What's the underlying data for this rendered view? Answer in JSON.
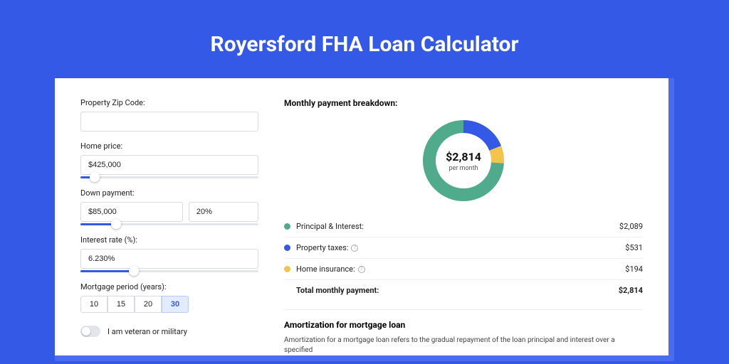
{
  "page": {
    "title": "Royersford FHA Loan Calculator",
    "background_color": "#3459e6",
    "accent_color": "#3459e6"
  },
  "form": {
    "zip": {
      "label": "Property Zip Code:",
      "value": ""
    },
    "home_price": {
      "label": "Home price:",
      "value": "$425,000",
      "slider_pct": 8
    },
    "down": {
      "label": "Down payment:",
      "amount": "$85,000",
      "percent": "20%",
      "slider_pct": 20
    },
    "rate": {
      "label": "Interest rate (%):",
      "value": "6.230%",
      "slider_pct": 30
    },
    "period": {
      "label": "Mortgage period (years):",
      "options": [
        "10",
        "15",
        "20",
        "30"
      ],
      "selected": "30"
    },
    "veteran": {
      "label": "I am veteran or military",
      "checked": false
    }
  },
  "breakdown": {
    "title": "Monthly payment breakdown:",
    "center_amount": "$2,814",
    "center_label": "per month",
    "segments": [
      {
        "key": "principal_interest",
        "name": "Principal & Interest:",
        "value": "$2,089",
        "color": "#4fab8b",
        "pct": 74,
        "info": false
      },
      {
        "key": "property_taxes",
        "name": "Property taxes:",
        "value": "$531",
        "color": "#3459e6",
        "pct": 19,
        "info": true
      },
      {
        "key": "home_insurance",
        "name": "Home insurance:",
        "value": "$194",
        "color": "#f3c44b",
        "pct": 7,
        "info": true
      }
    ],
    "total_label": "Total monthly payment:",
    "total_value": "$2,814",
    "donut_stroke_width": 18
  },
  "amortization": {
    "title": "Amortization for mortgage loan",
    "text": "Amortization for a mortgage loan refers to the gradual repayment of the loan principal and interest over a specified"
  }
}
